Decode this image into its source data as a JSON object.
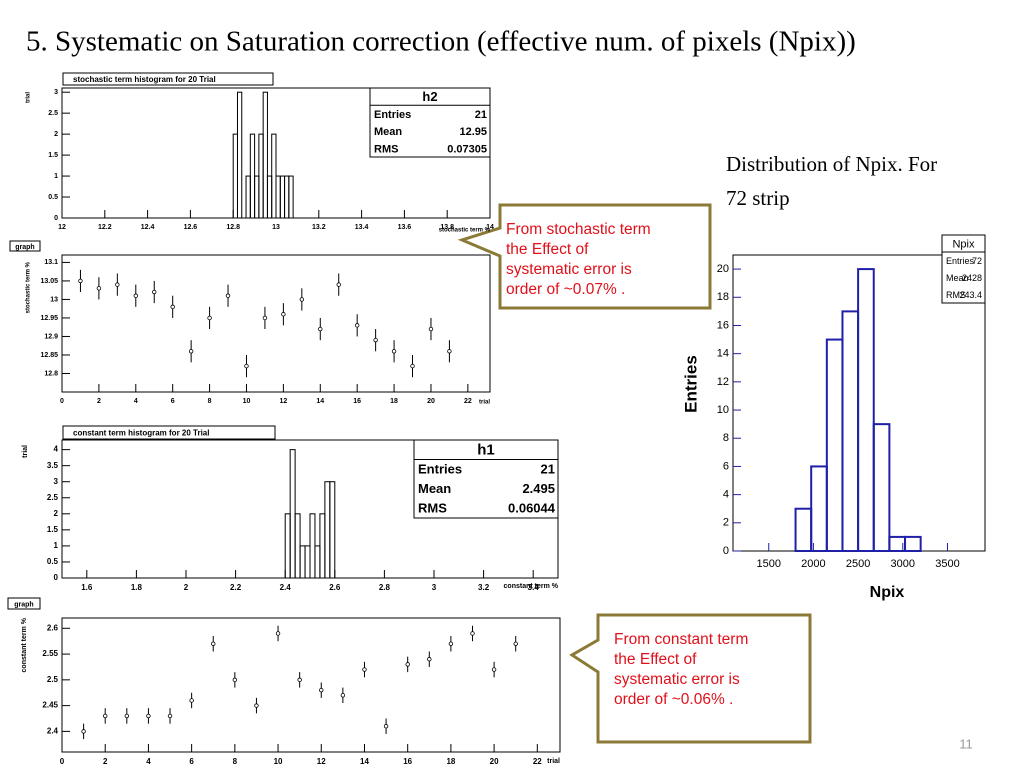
{
  "title": "5. Systematic on Saturation correction (effective num. of pixels (Npix))",
  "side_text": [
    "Distribution of Npix. For",
    "72 strip"
  ],
  "callouts": [
    {
      "lines": [
        "From stochastic term",
        "the Effect of",
        "systematic error is",
        "order of ~0.07% ."
      ]
    },
    {
      "lines": [
        "From constant term",
        "the Effect of",
        "systematic error is",
        "order of ~0.06% ."
      ]
    }
  ],
  "page_number": "11",
  "chart_data": [
    {
      "type": "histogram",
      "title": "stochastic term histogram for 20 Trial",
      "ylabel": "trial",
      "xlabel": "stochastic term %",
      "bins": [
        12.8,
        12.82,
        12.84,
        12.86,
        12.88,
        12.9,
        12.92,
        12.94,
        12.96,
        12.98,
        13.0,
        13.02,
        13.04,
        13.06,
        13.08
      ],
      "values": [
        2,
        3,
        0,
        1,
        2,
        1,
        2,
        3,
        1,
        2,
        1,
        1,
        1,
        1
      ],
      "xlim": [
        12,
        14
      ],
      "xticks": [
        12,
        12.2,
        12.4,
        12.6,
        12.8,
        13,
        13.2,
        13.4,
        13.6,
        13.8,
        14
      ],
      "ylim": [
        0,
        3.1
      ],
      "yticks": [
        0,
        0.5,
        1,
        1.5,
        2,
        2.5,
        3
      ],
      "color": "#000000",
      "stats": {
        "title": "h2",
        "rows": [
          {
            "label": "Entries",
            "value": 21
          },
          {
            "label": "Mean",
            "value": 12.95
          },
          {
            "label": "RMS",
            "value": 0.07305
          }
        ]
      }
    },
    {
      "type": "errorbar",
      "title": "graph",
      "ylabel": "stochastic term %",
      "xlabel": "trial",
      "x": [
        1,
        2,
        3,
        4,
        5,
        6,
        7,
        8,
        9,
        10,
        11,
        12,
        13,
        14,
        15,
        16,
        17,
        18,
        19,
        20,
        21
      ],
      "values": [
        13.05,
        13.03,
        13.04,
        13.01,
        13.02,
        12.98,
        12.86,
        12.95,
        13.01,
        12.82,
        12.95,
        12.96,
        13.0,
        12.92,
        13.04,
        12.93,
        12.89,
        12.86,
        12.82,
        12.92,
        12.86
      ],
      "errors": [
        0.03,
        0.03,
        0.03,
        0.03,
        0.03,
        0.03,
        0.03,
        0.03,
        0.03,
        0.03,
        0.03,
        0.03,
        0.03,
        0.03,
        0.03,
        0.03,
        0.03,
        0.03,
        0.03,
        0.03,
        0.03
      ],
      "xlim": [
        0,
        23.2
      ],
      "xticks": [
        0,
        2,
        4,
        6,
        8,
        10,
        12,
        14,
        16,
        18,
        20,
        22
      ],
      "ylim": [
        12.75,
        13.12
      ],
      "yticks": [
        12.8,
        12.85,
        12.9,
        12.95,
        13,
        13.05,
        13.1
      ],
      "color": "#000000"
    },
    {
      "type": "histogram",
      "title": "constant term histogram for 20 Trial",
      "ylabel": "trial",
      "xlabel": "constant term %",
      "bins": [
        2.4,
        2.42,
        2.44,
        2.46,
        2.48,
        2.5,
        2.52,
        2.54,
        2.56,
        2.58,
        2.6
      ],
      "values": [
        2,
        4,
        2,
        1,
        1,
        2,
        1,
        2,
        3,
        3
      ],
      "xlim": [
        1.5,
        3.5
      ],
      "xticks": [
        1.6,
        1.8,
        2,
        2.2,
        2.4,
        2.6,
        2.8,
        3,
        3.2,
        3.4
      ],
      "ylim": [
        0,
        4.3
      ],
      "yticks": [
        0,
        0.5,
        1,
        1.5,
        2,
        2.5,
        3,
        3.5,
        4
      ],
      "color": "#000000",
      "stats": {
        "title": "h1",
        "rows": [
          {
            "label": "Entries",
            "value": 21
          },
          {
            "label": "Mean",
            "value": 2.495
          },
          {
            "label": "RMS",
            "value": 0.06044
          }
        ]
      }
    },
    {
      "type": "errorbar",
      "title": "graph",
      "ylabel": "constant term %",
      "xlabel": "trial",
      "x": [
        1,
        2,
        3,
        4,
        5,
        6,
        7,
        8,
        9,
        10,
        11,
        12,
        13,
        14,
        15,
        16,
        17,
        18,
        19,
        20,
        21
      ],
      "values": [
        2.4,
        2.43,
        2.43,
        2.43,
        2.43,
        2.46,
        2.57,
        2.5,
        2.45,
        2.59,
        2.5,
        2.48,
        2.47,
        2.52,
        2.41,
        2.53,
        2.54,
        2.57,
        2.59,
        2.52,
        2.57
      ],
      "errors": [
        0.015,
        0.015,
        0.015,
        0.015,
        0.015,
        0.015,
        0.015,
        0.015,
        0.015,
        0.015,
        0.015,
        0.015,
        0.015,
        0.015,
        0.015,
        0.015,
        0.015,
        0.015,
        0.015,
        0.015,
        0.015
      ],
      "xlim": [
        0,
        23.05
      ],
      "xticks": [
        0,
        2,
        4,
        6,
        8,
        10,
        12,
        14,
        16,
        18,
        20,
        22
      ],
      "ylim": [
        2.36,
        2.62
      ],
      "yticks": [
        2.4,
        2.45,
        2.5,
        2.55,
        2.6
      ],
      "color": "#000000"
    },
    {
      "type": "histogram",
      "ylabel": "Entries",
      "xlabel": "Npix",
      "bins": [
        1800,
        1975,
        2150,
        2325,
        2500,
        2675,
        2850,
        3025,
        3200
      ],
      "values": [
        3,
        6,
        15,
        17,
        20,
        9,
        1,
        1
      ],
      "xlim": [
        1100,
        3920
      ],
      "xticks": [
        1500,
        2000,
        2500,
        3000,
        3500
      ],
      "ylim": [
        0,
        21
      ],
      "yticks": [
        0,
        2,
        4,
        6,
        8,
        10,
        12,
        14,
        16,
        18,
        20
      ],
      "color": "#1f1fa8",
      "stats": {
        "title": "Npix",
        "rows": [
          {
            "label": "Entries",
            "value": 72
          },
          {
            "label": "Mean",
            "value": 2428
          },
          {
            "label": "RMS",
            "value": 243.4
          }
        ]
      }
    }
  ]
}
